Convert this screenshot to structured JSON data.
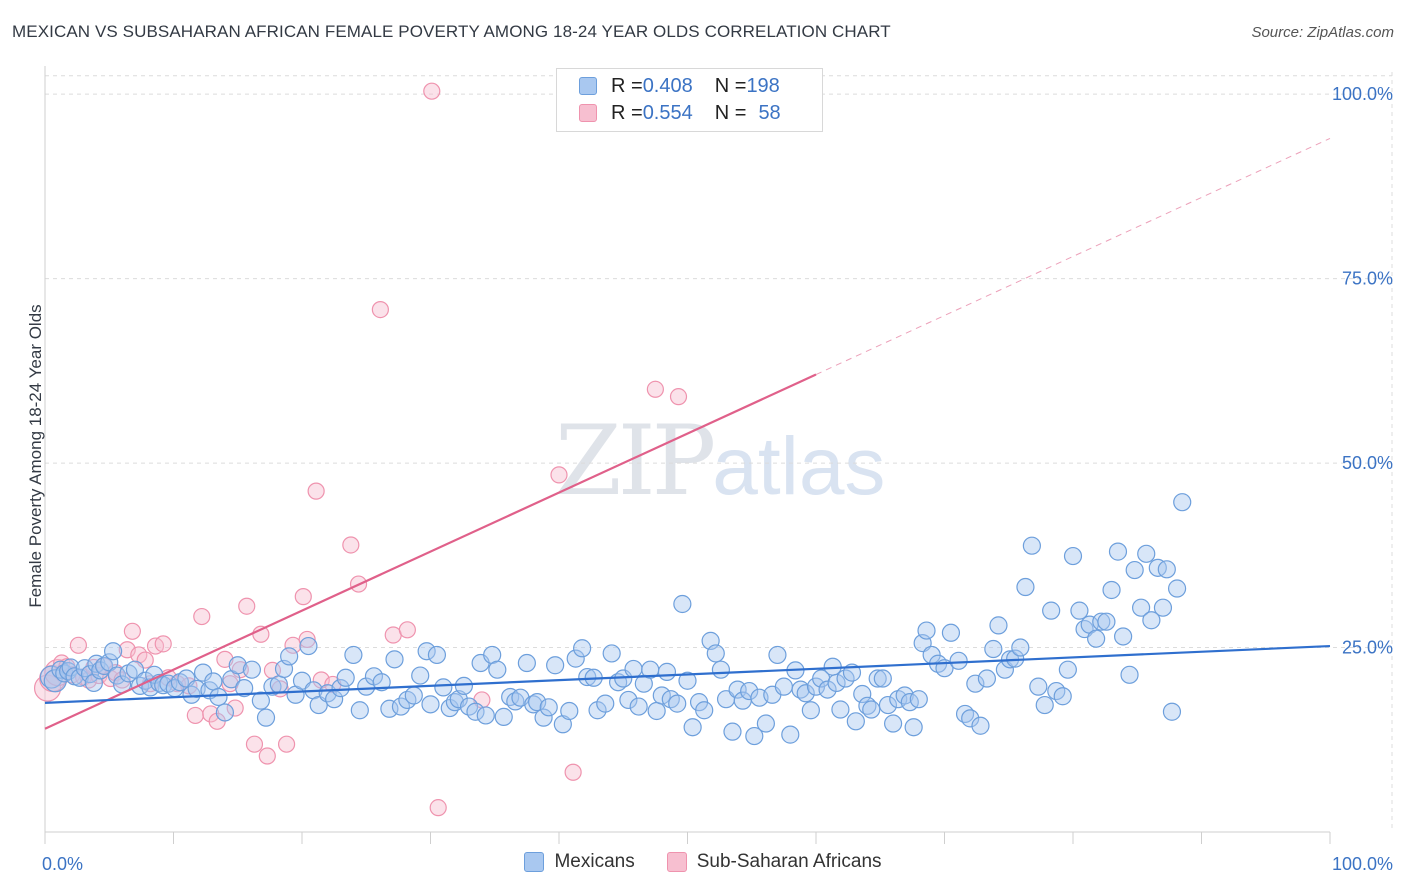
{
  "title": "MEXICAN VS SUBSAHARAN AFRICAN FEMALE POVERTY AMONG 18-24 YEAR OLDS CORRELATION CHART",
  "source": "Source: ZipAtlas.com",
  "watermark": {
    "zip": "ZIP",
    "atlas": "atlas"
  },
  "legend_top": [
    {
      "r_label": "R = ",
      "r_value": "0.408",
      "n_label": "N = ",
      "n_value": "198"
    },
    {
      "r_label": "R = ",
      "r_value": "0.554",
      "n_label": "N = ",
      "n_value": "58"
    }
  ],
  "colors": {
    "mexicans_fill": "#a9c8f0",
    "mexicans_stroke": "#6d9fdc",
    "mexicans_line": "#2f6fce",
    "africans_fill": "#f7bfd0",
    "africans_stroke": "#ef93ae",
    "africans_line": "#e0608a",
    "grid": "#dcdcdc",
    "tick_label": "#3b73c4"
  },
  "chart_data": {
    "type": "scatter",
    "title": "MEXICAN VS SUBSAHARAN AFRICAN FEMALE POVERTY AMONG 18-24 YEAR OLDS CORRELATION CHART",
    "xlabel": "",
    "ylabel": "Female Poverty Among 18-24 Year Olds",
    "xlim": [
      0,
      100
    ],
    "ylim": [
      0,
      103
    ],
    "x_tick_labels": [
      {
        "value": 0,
        "label": "0.0%"
      },
      {
        "value": 100,
        "label": "100.0%"
      }
    ],
    "y_tick_labels": [
      {
        "value": 25,
        "label": "25.0%"
      },
      {
        "value": 50,
        "label": "50.0%"
      },
      {
        "value": 75,
        "label": "75.0%"
      },
      {
        "value": 100,
        "label": "100.0%"
      }
    ],
    "grid": true,
    "legend_position": "bottom-center",
    "series": [
      {
        "name": "Mexicans",
        "trend": {
          "x0": 0,
          "y0": 17.5,
          "x1": 100,
          "y1": 25.2
        },
        "points": [
          [
            0.5,
            21
          ],
          [
            0.8,
            20.5
          ],
          [
            1.2,
            22
          ],
          [
            1.5,
            21.5
          ],
          [
            1.8,
            21.8
          ],
          [
            2.0,
            22.3
          ],
          [
            2.3,
            21.1
          ],
          [
            2.7,
            20.9
          ],
          [
            3.1,
            22.2
          ],
          [
            3.5,
            21.4
          ],
          [
            3.8,
            20.2
          ],
          [
            4.0,
            22.8
          ],
          [
            4.3,
            21.9
          ],
          [
            4.6,
            22.5
          ],
          [
            5.0,
            23.0
          ],
          [
            5.3,
            24.5
          ],
          [
            5.6,
            21.2
          ],
          [
            6.0,
            20.0
          ],
          [
            6.5,
            21.5
          ],
          [
            7.0,
            22.0
          ],
          [
            7.4,
            19.8
          ],
          [
            7.8,
            20.5
          ],
          [
            8.2,
            19.6
          ],
          [
            8.5,
            21.3
          ],
          [
            8.9,
            20.2
          ],
          [
            9.2,
            19.9
          ],
          [
            9.6,
            20.1
          ],
          [
            10.1,
            19.5
          ],
          [
            10.5,
            20.3
          ],
          [
            11.0,
            20.8
          ],
          [
            11.4,
            18.6
          ],
          [
            11.8,
            19.4
          ],
          [
            12.3,
            21.6
          ],
          [
            12.8,
            19.2
          ],
          [
            13.1,
            20.4
          ],
          [
            13.5,
            18.3
          ],
          [
            14.0,
            16.2
          ],
          [
            14.5,
            20.7
          ],
          [
            15.0,
            22.6
          ],
          [
            15.5,
            19.5
          ],
          [
            16.1,
            22.0
          ],
          [
            16.8,
            17.8
          ],
          [
            17.2,
            15.5
          ],
          [
            17.7,
            19.7
          ],
          [
            18.2,
            20.0
          ],
          [
            18.6,
            22.1
          ],
          [
            19.0,
            23.8
          ],
          [
            19.5,
            18.6
          ],
          [
            20.0,
            20.5
          ],
          [
            20.5,
            25.2
          ],
          [
            20.9,
            19.2
          ],
          [
            21.3,
            17.2
          ],
          [
            22.0,
            18.8
          ],
          [
            22.5,
            18.0
          ],
          [
            23.0,
            19.5
          ],
          [
            23.4,
            20.9
          ],
          [
            24.0,
            24.0
          ],
          [
            24.5,
            16.5
          ],
          [
            25.0,
            19.7
          ],
          [
            25.6,
            21.1
          ],
          [
            26.2,
            20.3
          ],
          [
            26.8,
            16.7
          ],
          [
            27.2,
            23.4
          ],
          [
            27.7,
            17.0
          ],
          [
            28.2,
            17.9
          ],
          [
            28.7,
            18.5
          ],
          [
            29.2,
            21.2
          ],
          [
            29.7,
            24.5
          ],
          [
            30.0,
            17.3
          ],
          [
            30.5,
            24.0
          ],
          [
            31.0,
            19.6
          ],
          [
            31.5,
            16.8
          ],
          [
            31.9,
            17.6
          ],
          [
            32.2,
            18.0
          ],
          [
            32.6,
            19.8
          ],
          [
            33.0,
            17.0
          ],
          [
            33.5,
            16.3
          ],
          [
            33.9,
            22.9
          ],
          [
            34.3,
            15.8
          ],
          [
            34.8,
            24.0
          ],
          [
            35.2,
            22.0
          ],
          [
            35.7,
            15.6
          ],
          [
            36.2,
            18.3
          ],
          [
            36.6,
            17.7
          ],
          [
            37.0,
            18.2
          ],
          [
            37.5,
            22.9
          ],
          [
            38.0,
            17.3
          ],
          [
            38.3,
            17.6
          ],
          [
            38.8,
            15.5
          ],
          [
            39.2,
            16.9
          ],
          [
            39.7,
            22.6
          ],
          [
            40.3,
            14.6
          ],
          [
            40.8,
            16.4
          ],
          [
            41.3,
            23.5
          ],
          [
            41.8,
            24.9
          ],
          [
            42.2,
            21.0
          ],
          [
            42.7,
            20.9
          ],
          [
            43.0,
            16.5
          ],
          [
            43.6,
            17.4
          ],
          [
            44.1,
            24.2
          ],
          [
            44.6,
            20.3
          ],
          [
            45.0,
            20.8
          ],
          [
            45.4,
            17.9
          ],
          [
            45.8,
            22.1
          ],
          [
            46.2,
            17.0
          ],
          [
            46.6,
            20.1
          ],
          [
            47.1,
            22.0
          ],
          [
            47.6,
            16.4
          ],
          [
            48.0,
            18.5
          ],
          [
            48.4,
            21.7
          ],
          [
            48.7,
            18.0
          ],
          [
            49.2,
            17.4
          ],
          [
            49.6,
            30.9
          ],
          [
            50.0,
            20.5
          ],
          [
            50.4,
            14.2
          ],
          [
            50.9,
            17.6
          ],
          [
            51.3,
            16.5
          ],
          [
            51.8,
            25.9
          ],
          [
            52.2,
            24.2
          ],
          [
            52.6,
            22.0
          ],
          [
            53.0,
            18.0
          ],
          [
            53.5,
            13.6
          ],
          [
            53.9,
            19.3
          ],
          [
            54.3,
            17.8
          ],
          [
            54.8,
            19.1
          ],
          [
            55.2,
            13.0
          ],
          [
            55.6,
            18.2
          ],
          [
            56.1,
            14.7
          ],
          [
            56.6,
            18.6
          ],
          [
            57.0,
            24.0
          ],
          [
            57.5,
            19.7
          ],
          [
            58.0,
            13.2
          ],
          [
            58.4,
            21.9
          ],
          [
            58.8,
            19.3
          ],
          [
            59.2,
            18.8
          ],
          [
            59.6,
            16.5
          ],
          [
            60.0,
            19.7
          ],
          [
            60.4,
            20.8
          ],
          [
            60.9,
            19.3
          ],
          [
            61.3,
            22.4
          ],
          [
            61.6,
            20.2
          ],
          [
            61.9,
            16.6
          ],
          [
            62.3,
            20.8
          ],
          [
            62.8,
            21.6
          ],
          [
            63.1,
            15.0
          ],
          [
            63.6,
            18.7
          ],
          [
            64.0,
            17.1
          ],
          [
            64.3,
            16.6
          ],
          [
            64.8,
            20.8
          ],
          [
            65.2,
            20.8
          ],
          [
            65.6,
            17.2
          ],
          [
            66.0,
            14.7
          ],
          [
            66.4,
            18.0
          ],
          [
            66.9,
            18.5
          ],
          [
            67.3,
            17.6
          ],
          [
            67.6,
            14.2
          ],
          [
            68.0,
            18.0
          ],
          [
            68.3,
            25.6
          ],
          [
            68.6,
            27.3
          ],
          [
            69.0,
            24.0
          ],
          [
            69.5,
            22.8
          ],
          [
            70.0,
            22.2
          ],
          [
            70.5,
            27.0
          ],
          [
            71.1,
            23.2
          ],
          [
            71.6,
            16.0
          ],
          [
            72.0,
            15.4
          ],
          [
            72.4,
            20.1
          ],
          [
            72.8,
            14.4
          ],
          [
            73.3,
            20.8
          ],
          [
            73.8,
            24.8
          ],
          [
            74.2,
            28.0
          ],
          [
            74.7,
            22.0
          ],
          [
            75.1,
            23.4
          ],
          [
            75.5,
            23.5
          ],
          [
            75.9,
            25.0
          ],
          [
            76.3,
            33.2
          ],
          [
            76.8,
            38.8
          ],
          [
            77.3,
            19.7
          ],
          [
            77.8,
            17.2
          ],
          [
            78.3,
            30.0
          ],
          [
            78.7,
            19.1
          ],
          [
            79.2,
            18.4
          ],
          [
            79.6,
            22.0
          ],
          [
            80.0,
            37.4
          ],
          [
            80.5,
            30.0
          ],
          [
            80.9,
            27.5
          ],
          [
            81.3,
            28.1
          ],
          [
            81.8,
            26.2
          ],
          [
            82.2,
            28.5
          ],
          [
            82.6,
            28.5
          ],
          [
            83.0,
            32.8
          ],
          [
            83.5,
            38.0
          ],
          [
            83.9,
            26.5
          ],
          [
            84.4,
            21.3
          ],
          [
            84.8,
            35.5
          ],
          [
            85.3,
            30.4
          ],
          [
            85.7,
            37.7
          ],
          [
            86.1,
            28.7
          ],
          [
            86.6,
            35.8
          ],
          [
            87.0,
            30.4
          ],
          [
            87.3,
            35.6
          ],
          [
            87.7,
            16.3
          ],
          [
            88.1,
            33.0
          ],
          [
            88.5,
            44.7
          ]
        ]
      },
      {
        "name": "Sub-Saharan Africans",
        "trend": {
          "x0": 0,
          "y0": 14.0,
          "x1": 60,
          "y1": 62.0,
          "dashed_to": {
            "x": 100,
            "y": 94.0
          }
        },
        "points": [
          [
            0.2,
            19.5
          ],
          [
            0.6,
            20.8
          ],
          [
            1.0,
            21.6
          ],
          [
            1.3,
            22.9
          ],
          [
            1.7,
            22.4
          ],
          [
            2.1,
            21.3
          ],
          [
            2.6,
            25.3
          ],
          [
            3.0,
            21.0
          ],
          [
            3.4,
            20.6
          ],
          [
            3.8,
            22.3
          ],
          [
            4.2,
            21.2
          ],
          [
            4.6,
            22.5
          ],
          [
            5.1,
            20.8
          ],
          [
            5.5,
            21.6
          ],
          [
            6.0,
            20.6
          ],
          [
            6.4,
            24.7
          ],
          [
            6.8,
            27.2
          ],
          [
            7.3,
            24.0
          ],
          [
            7.8,
            23.3
          ],
          [
            8.2,
            20.1
          ],
          [
            8.6,
            25.2
          ],
          [
            9.2,
            25.5
          ],
          [
            9.6,
            20.9
          ],
          [
            10.3,
            20.1
          ],
          [
            11.2,
            19.8
          ],
          [
            11.7,
            15.8
          ],
          [
            12.2,
            29.2
          ],
          [
            12.9,
            16.0
          ],
          [
            13.4,
            15.0
          ],
          [
            14.0,
            23.4
          ],
          [
            14.4,
            20.1
          ],
          [
            14.8,
            16.8
          ],
          [
            15.2,
            22.0
          ],
          [
            15.7,
            30.6
          ],
          [
            16.3,
            11.9
          ],
          [
            16.8,
            26.8
          ],
          [
            17.3,
            10.3
          ],
          [
            17.7,
            21.9
          ],
          [
            18.3,
            19.4
          ],
          [
            18.8,
            11.9
          ],
          [
            19.3,
            25.3
          ],
          [
            20.1,
            31.9
          ],
          [
            20.4,
            26.1
          ],
          [
            21.1,
            46.2
          ],
          [
            21.5,
            20.6
          ],
          [
            22.4,
            20.0
          ],
          [
            23.8,
            38.9
          ],
          [
            24.4,
            33.6
          ],
          [
            26.1,
            70.8
          ],
          [
            27.1,
            26.7
          ],
          [
            28.2,
            27.4
          ],
          [
            30.1,
            100.4
          ],
          [
            30.6,
            3.3
          ],
          [
            34.0,
            17.9
          ],
          [
            40.0,
            48.4
          ],
          [
            41.1,
            8.1
          ],
          [
            47.5,
            60.0
          ],
          [
            49.3,
            59.0
          ]
        ]
      }
    ]
  }
}
